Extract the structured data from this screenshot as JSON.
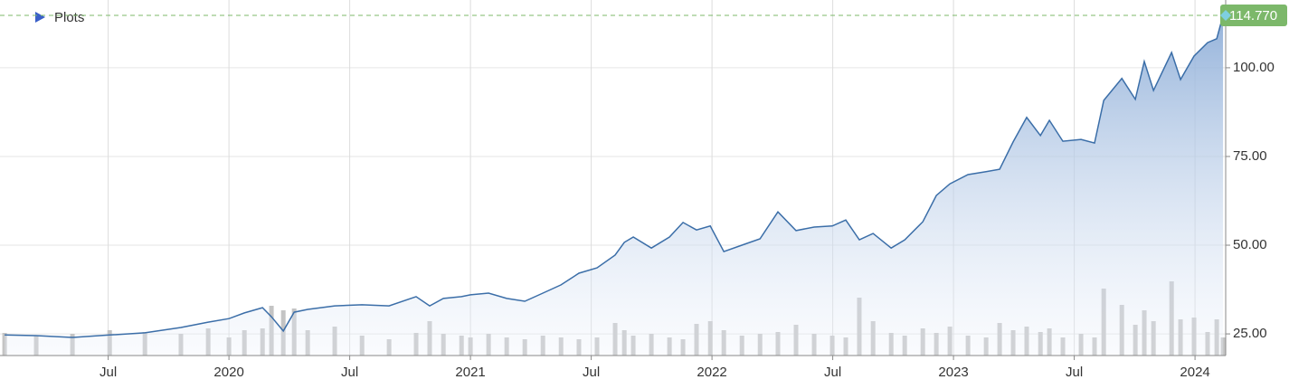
{
  "legend_label": "Plots",
  "chart_data": {
    "type": "line",
    "x": [
      2019.071,
      2019.202,
      2019.352,
      2019.506,
      2019.652,
      2019.801,
      2019.914,
      2020,
      2020.064,
      2020.139,
      2020.176,
      2020.225,
      2020.27,
      2020.326,
      2020.438,
      2020.551,
      2020.663,
      2020.775,
      2020.831,
      2020.888,
      2020.963,
      2021,
      2021.075,
      2021.15,
      2021.225,
      2021.3,
      2021.375,
      2021.449,
      2021.524,
      2021.599,
      2021.637,
      2021.674,
      2021.749,
      2021.824,
      2021.88,
      2021.936,
      2021.993,
      2022.049,
      2022.124,
      2022.199,
      2022.273,
      2022.348,
      2022.423,
      2022.498,
      2022.554,
      2022.61,
      2022.667,
      2022.742,
      2022.798,
      2022.873,
      2022.929,
      2022.985,
      2023.06,
      2023.135,
      2023.191,
      2023.247,
      2023.303,
      2023.36,
      2023.397,
      2023.453,
      2023.528,
      2023.584,
      2023.622,
      2023.697,
      2023.753,
      2023.79,
      2023.828,
      2023.903,
      2023.94,
      2023.996,
      2024.052,
      2024.09,
      2024.116
    ],
    "values": [
      24.7,
      24.5,
      24,
      24.7,
      25.3,
      26.8,
      28.3,
      29.3,
      30.9,
      32.4,
      29.8,
      25.8,
      31.1,
      31.9,
      32.9,
      33.2,
      32.9,
      35.5,
      32.9,
      35,
      35.5,
      36,
      36.5,
      35,
      34.2,
      36.5,
      38.8,
      42.1,
      43.6,
      47.2,
      50.8,
      52.3,
      49.2,
      52.3,
      56.4,
      54.3,
      55.4,
      48.2,
      50,
      51.8,
      59.4,
      54.1,
      55.1,
      55.4,
      57.1,
      51.5,
      53.3,
      49.2,
      51.5,
      56.6,
      64,
      67.3,
      69.9,
      70.7,
      71.4,
      79.1,
      86,
      80.9,
      85.2,
      79.3,
      79.8,
      78.8,
      90.8,
      97,
      91.1,
      101.8,
      93.6,
      104.3,
      96.7,
      103.3,
      107.1,
      108.2,
      114.77
    ],
    "color": "#3b6ea8",
    "volume": {
      "color": "#c4c4c4",
      "vlim": [
        0,
        100
      ],
      "values": [
        25,
        22,
        24,
        28,
        26,
        24,
        30,
        20,
        28,
        30,
        55,
        50,
        52,
        28,
        32,
        22,
        18,
        25,
        38,
        24,
        22,
        20,
        24,
        20,
        18,
        22,
        20,
        18,
        20,
        36,
        28,
        22,
        24,
        20,
        18,
        35,
        38,
        28,
        22,
        24,
        26,
        34,
        24,
        22,
        20,
        64,
        38,
        25,
        22,
        30,
        25,
        32,
        22,
        20,
        36,
        28,
        32,
        26,
        30,
        20,
        24,
        20,
        74,
        56,
        34,
        50,
        38,
        82,
        40,
        42,
        26,
        40,
        20
      ]
    },
    "last_value": {
      "value": 114.77,
      "label": "114.770",
      "color": "#7cb86a"
    },
    "xlim": [
      2019.052,
      2024.127
    ],
    "xticks": [
      {
        "value": 2019.5,
        "label": "Jul"
      },
      2020,
      {
        "value": 2020.5,
        "label": "Jul"
      },
      2021,
      {
        "value": 2021.5,
        "label": "Jul"
      },
      2022,
      {
        "value": 2022.5,
        "label": "Jul"
      },
      2023,
      {
        "value": 2023.5,
        "label": "Jul"
      },
      2024
    ],
    "ylim": [
      18.9,
      119.1
    ],
    "yticks": [
      {
        "value": 25,
        "label": "25.00"
      },
      {
        "value": 50,
        "label": "50.00"
      },
      {
        "value": 75,
        "label": "75.00"
      },
      {
        "value": 100,
        "label": "100.00"
      }
    ],
    "grid": true
  }
}
